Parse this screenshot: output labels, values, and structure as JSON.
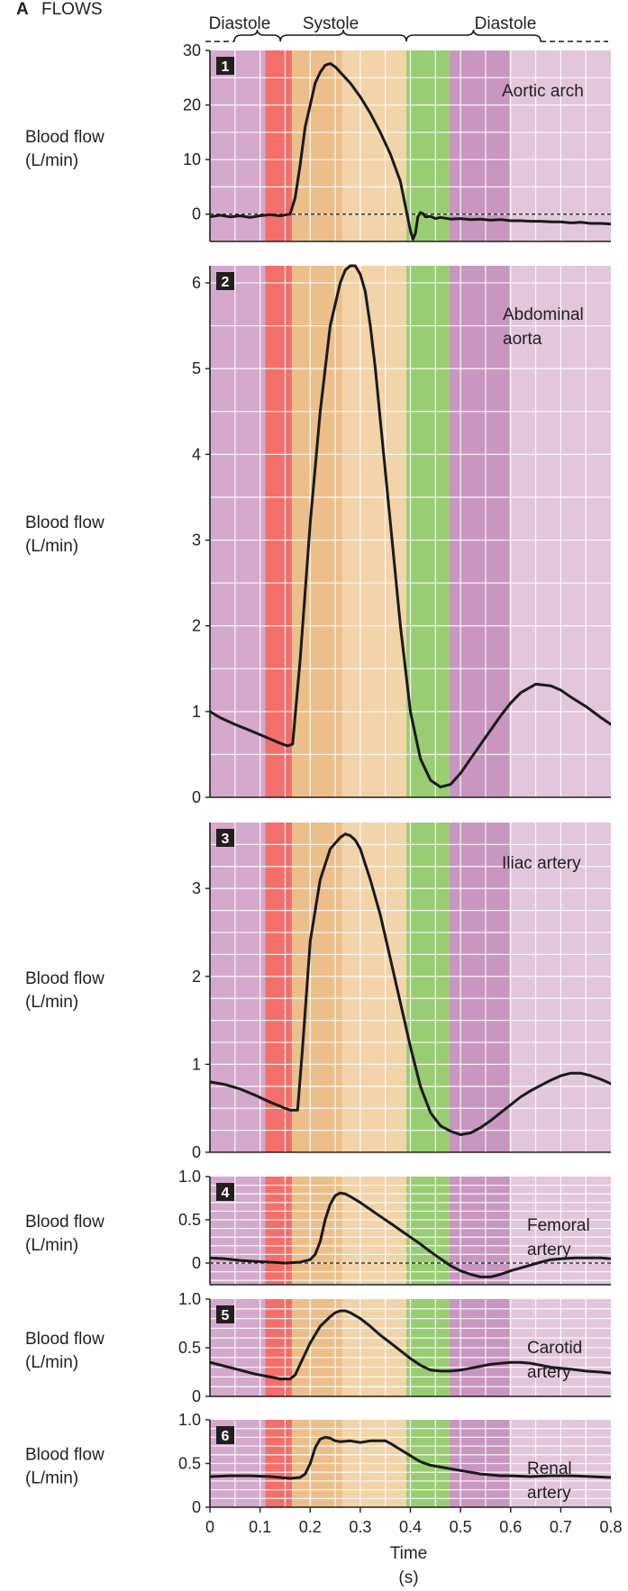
{
  "panel_letter": "A",
  "panel_title": "FLOWS",
  "phase_labels": [
    "Diastole",
    "Systole",
    "Diastole"
  ],
  "phase_bands": [
    {
      "from": 0.0,
      "to": 0.11,
      "color": "#d4a9cc"
    },
    {
      "from": 0.11,
      "to": 0.164,
      "color": "#f26f6b"
    },
    {
      "from": 0.164,
      "to": 0.264,
      "color": "#ebbe8a"
    },
    {
      "from": 0.264,
      "to": 0.392,
      "color": "#f3d3a9"
    },
    {
      "from": 0.392,
      "to": 0.478,
      "color": "#98cd73"
    },
    {
      "from": 0.478,
      "to": 0.598,
      "color": "#c996c0"
    },
    {
      "from": 0.598,
      "to": 0.8,
      "color": "#e1c6dc"
    }
  ],
  "colors": {
    "curve": "#1a1a1a",
    "gridline": "#ffffff",
    "axis": "#231f20",
    "number_box": "#231f20"
  },
  "chart_data": [
    {
      "type": "line",
      "number": "1",
      "name": "Aortic arch",
      "ylabel": "Blood flow\n(L/min)",
      "ylim": [
        -5,
        30
      ],
      "yticks": [
        0,
        10,
        20,
        30
      ],
      "zero_dashed": true,
      "grid": true,
      "x": [
        0.0,
        0.02,
        0.04,
        0.06,
        0.08,
        0.1,
        0.12,
        0.14,
        0.16,
        0.17,
        0.18,
        0.19,
        0.2,
        0.21,
        0.22,
        0.23,
        0.24,
        0.25,
        0.26,
        0.28,
        0.3,
        0.32,
        0.34,
        0.36,
        0.38,
        0.39,
        0.4,
        0.405,
        0.41,
        0.415,
        0.42,
        0.425,
        0.43,
        0.44,
        0.45,
        0.46,
        0.48,
        0.5,
        0.52,
        0.54,
        0.56,
        0.58,
        0.6,
        0.62,
        0.64,
        0.66,
        0.68,
        0.7,
        0.72,
        0.74,
        0.76,
        0.78,
        0.8
      ],
      "y": [
        -0.5,
        -0.2,
        -0.5,
        -0.3,
        -0.6,
        -0.3,
        -0.1,
        -0.3,
        0.0,
        3.0,
        9.0,
        16.0,
        20.0,
        24.0,
        26.0,
        27.3,
        27.6,
        27.0,
        26.0,
        24.0,
        21.5,
        18.5,
        15.0,
        11.0,
        6.0,
        1.5,
        -3.0,
        -4.6,
        -3.5,
        -0.5,
        0.3,
        0.1,
        -0.5,
        -0.4,
        -0.8,
        -0.6,
        -0.9,
        -0.8,
        -1.0,
        -0.9,
        -1.1,
        -1.0,
        -1.2,
        -1.2,
        -1.3,
        -1.3,
        -1.4,
        -1.4,
        -1.6,
        -1.5,
        -1.7,
        -1.7,
        -1.8
      ]
    },
    {
      "type": "line",
      "number": "2",
      "name": "Abdominal\naorta",
      "ylabel": "Blood flow\n(L/min)",
      "ylim": [
        0,
        6.2
      ],
      "yticks": [
        0,
        1,
        2,
        3,
        4,
        5,
        6
      ],
      "zero_dashed": false,
      "grid": true,
      "x": [
        0.0,
        0.02,
        0.05,
        0.08,
        0.1,
        0.12,
        0.14,
        0.155,
        0.165,
        0.18,
        0.2,
        0.22,
        0.24,
        0.26,
        0.27,
        0.28,
        0.29,
        0.3,
        0.31,
        0.32,
        0.33,
        0.34,
        0.36,
        0.38,
        0.4,
        0.42,
        0.44,
        0.46,
        0.48,
        0.5,
        0.52,
        0.55,
        0.58,
        0.6,
        0.62,
        0.65,
        0.68,
        0.7,
        0.72,
        0.75,
        0.78,
        0.8
      ],
      "y": [
        1.0,
        0.93,
        0.85,
        0.78,
        0.73,
        0.68,
        0.63,
        0.6,
        0.62,
        1.6,
        3.2,
        4.5,
        5.5,
        6.0,
        6.15,
        6.2,
        6.2,
        6.1,
        5.9,
        5.5,
        5.0,
        4.4,
        3.2,
        2.0,
        1.0,
        0.45,
        0.2,
        0.12,
        0.15,
        0.28,
        0.45,
        0.7,
        0.95,
        1.1,
        1.22,
        1.32,
        1.3,
        1.25,
        1.17,
        1.06,
        0.93,
        0.85
      ]
    },
    {
      "type": "line",
      "number": "3",
      "name": "Iliac artery",
      "ylabel": "Blood flow\n(L/min)",
      "ylim": [
        0,
        3.75
      ],
      "yticks": [
        0,
        1,
        2,
        3
      ],
      "zero_dashed": false,
      "grid": true,
      "x": [
        0.0,
        0.03,
        0.06,
        0.09,
        0.12,
        0.15,
        0.16,
        0.175,
        0.185,
        0.2,
        0.22,
        0.24,
        0.26,
        0.27,
        0.28,
        0.29,
        0.3,
        0.32,
        0.34,
        0.36,
        0.38,
        0.4,
        0.42,
        0.44,
        0.46,
        0.48,
        0.5,
        0.52,
        0.54,
        0.56,
        0.58,
        0.6,
        0.62,
        0.64,
        0.66,
        0.68,
        0.7,
        0.72,
        0.74,
        0.76,
        0.78,
        0.8
      ],
      "y": [
        0.8,
        0.77,
        0.72,
        0.65,
        0.57,
        0.5,
        0.48,
        0.48,
        1.2,
        2.4,
        3.1,
        3.45,
        3.58,
        3.62,
        3.6,
        3.55,
        3.45,
        3.1,
        2.7,
        2.2,
        1.7,
        1.2,
        0.75,
        0.45,
        0.3,
        0.24,
        0.2,
        0.22,
        0.28,
        0.36,
        0.45,
        0.54,
        0.63,
        0.7,
        0.76,
        0.82,
        0.87,
        0.9,
        0.9,
        0.87,
        0.83,
        0.78
      ]
    },
    {
      "type": "line",
      "number": "4",
      "name": "Femoral\nartery",
      "ylabel": "Blood flow\n(L/min)",
      "ylim": [
        -0.25,
        1.0
      ],
      "yticks": [
        0,
        0.5,
        1.0
      ],
      "zero_dashed": true,
      "grid": true,
      "x": [
        0.0,
        0.03,
        0.06,
        0.09,
        0.12,
        0.15,
        0.18,
        0.2,
        0.21,
        0.22,
        0.23,
        0.24,
        0.25,
        0.26,
        0.27,
        0.28,
        0.3,
        0.32,
        0.34,
        0.36,
        0.38,
        0.4,
        0.42,
        0.44,
        0.46,
        0.48,
        0.5,
        0.52,
        0.54,
        0.56,
        0.58,
        0.6,
        0.63,
        0.66,
        0.68,
        0.7,
        0.73,
        0.76,
        0.78,
        0.8
      ],
      "y": [
        0.06,
        0.05,
        0.03,
        0.02,
        0.01,
        0.0,
        0.01,
        0.04,
        0.1,
        0.25,
        0.5,
        0.68,
        0.78,
        0.81,
        0.8,
        0.77,
        0.7,
        0.62,
        0.54,
        0.46,
        0.38,
        0.3,
        0.22,
        0.13,
        0.05,
        -0.03,
        -0.09,
        -0.13,
        -0.16,
        -0.16,
        -0.13,
        -0.09,
        -0.04,
        0.01,
        0.04,
        0.05,
        0.06,
        0.06,
        0.06,
        0.05
      ]
    },
    {
      "type": "line",
      "number": "5",
      "name": "Carotid\nartery",
      "ylabel": "Blood flow\n(L/min)",
      "ylim": [
        0,
        1.0
      ],
      "yticks": [
        0,
        0.5,
        1.0
      ],
      "zero_dashed": false,
      "grid": true,
      "x": [
        0.0,
        0.03,
        0.06,
        0.09,
        0.12,
        0.14,
        0.16,
        0.17,
        0.18,
        0.2,
        0.22,
        0.24,
        0.25,
        0.26,
        0.27,
        0.28,
        0.3,
        0.32,
        0.34,
        0.36,
        0.38,
        0.4,
        0.42,
        0.44,
        0.46,
        0.48,
        0.5,
        0.52,
        0.54,
        0.56,
        0.58,
        0.6,
        0.62,
        0.64,
        0.66,
        0.68,
        0.7,
        0.72,
        0.75,
        0.78,
        0.8
      ],
      "y": [
        0.35,
        0.31,
        0.27,
        0.23,
        0.2,
        0.18,
        0.18,
        0.22,
        0.33,
        0.55,
        0.72,
        0.82,
        0.86,
        0.88,
        0.88,
        0.86,
        0.8,
        0.72,
        0.63,
        0.55,
        0.47,
        0.39,
        0.32,
        0.27,
        0.26,
        0.26,
        0.27,
        0.29,
        0.31,
        0.33,
        0.34,
        0.35,
        0.35,
        0.34,
        0.32,
        0.3,
        0.29,
        0.28,
        0.26,
        0.25,
        0.24
      ]
    },
    {
      "type": "line",
      "number": "6",
      "name": "Renal\nartery",
      "ylabel": "Blood flow\n(L/min)",
      "ylim": [
        0,
        1.0
      ],
      "yticks": [
        0,
        0.5,
        1.0
      ],
      "zero_dashed": false,
      "grid": true,
      "x": [
        0.0,
        0.04,
        0.08,
        0.12,
        0.16,
        0.18,
        0.19,
        0.2,
        0.21,
        0.22,
        0.23,
        0.24,
        0.25,
        0.26,
        0.28,
        0.3,
        0.32,
        0.34,
        0.35,
        0.36,
        0.38,
        0.4,
        0.42,
        0.44,
        0.46,
        0.48,
        0.5,
        0.52,
        0.54,
        0.56,
        0.58,
        0.6,
        0.64,
        0.68,
        0.72,
        0.76,
        0.8
      ],
      "y": [
        0.35,
        0.36,
        0.36,
        0.35,
        0.33,
        0.34,
        0.38,
        0.5,
        0.68,
        0.78,
        0.8,
        0.79,
        0.76,
        0.75,
        0.76,
        0.74,
        0.76,
        0.76,
        0.76,
        0.73,
        0.66,
        0.59,
        0.52,
        0.48,
        0.46,
        0.44,
        0.42,
        0.4,
        0.38,
        0.37,
        0.36,
        0.36,
        0.35,
        0.36,
        0.36,
        0.35,
        0.34
      ]
    }
  ],
  "x_axis": {
    "ticks": [
      0,
      0.1,
      0.2,
      0.3,
      0.4,
      0.5,
      0.6,
      0.7,
      0.8
    ],
    "tick_labels": [
      "0",
      "0.1",
      "0.2",
      "0.3",
      "0.4",
      "0.5",
      "0.6",
      "0.7",
      "0.8"
    ],
    "label": "Time",
    "unit": "(s)"
  }
}
